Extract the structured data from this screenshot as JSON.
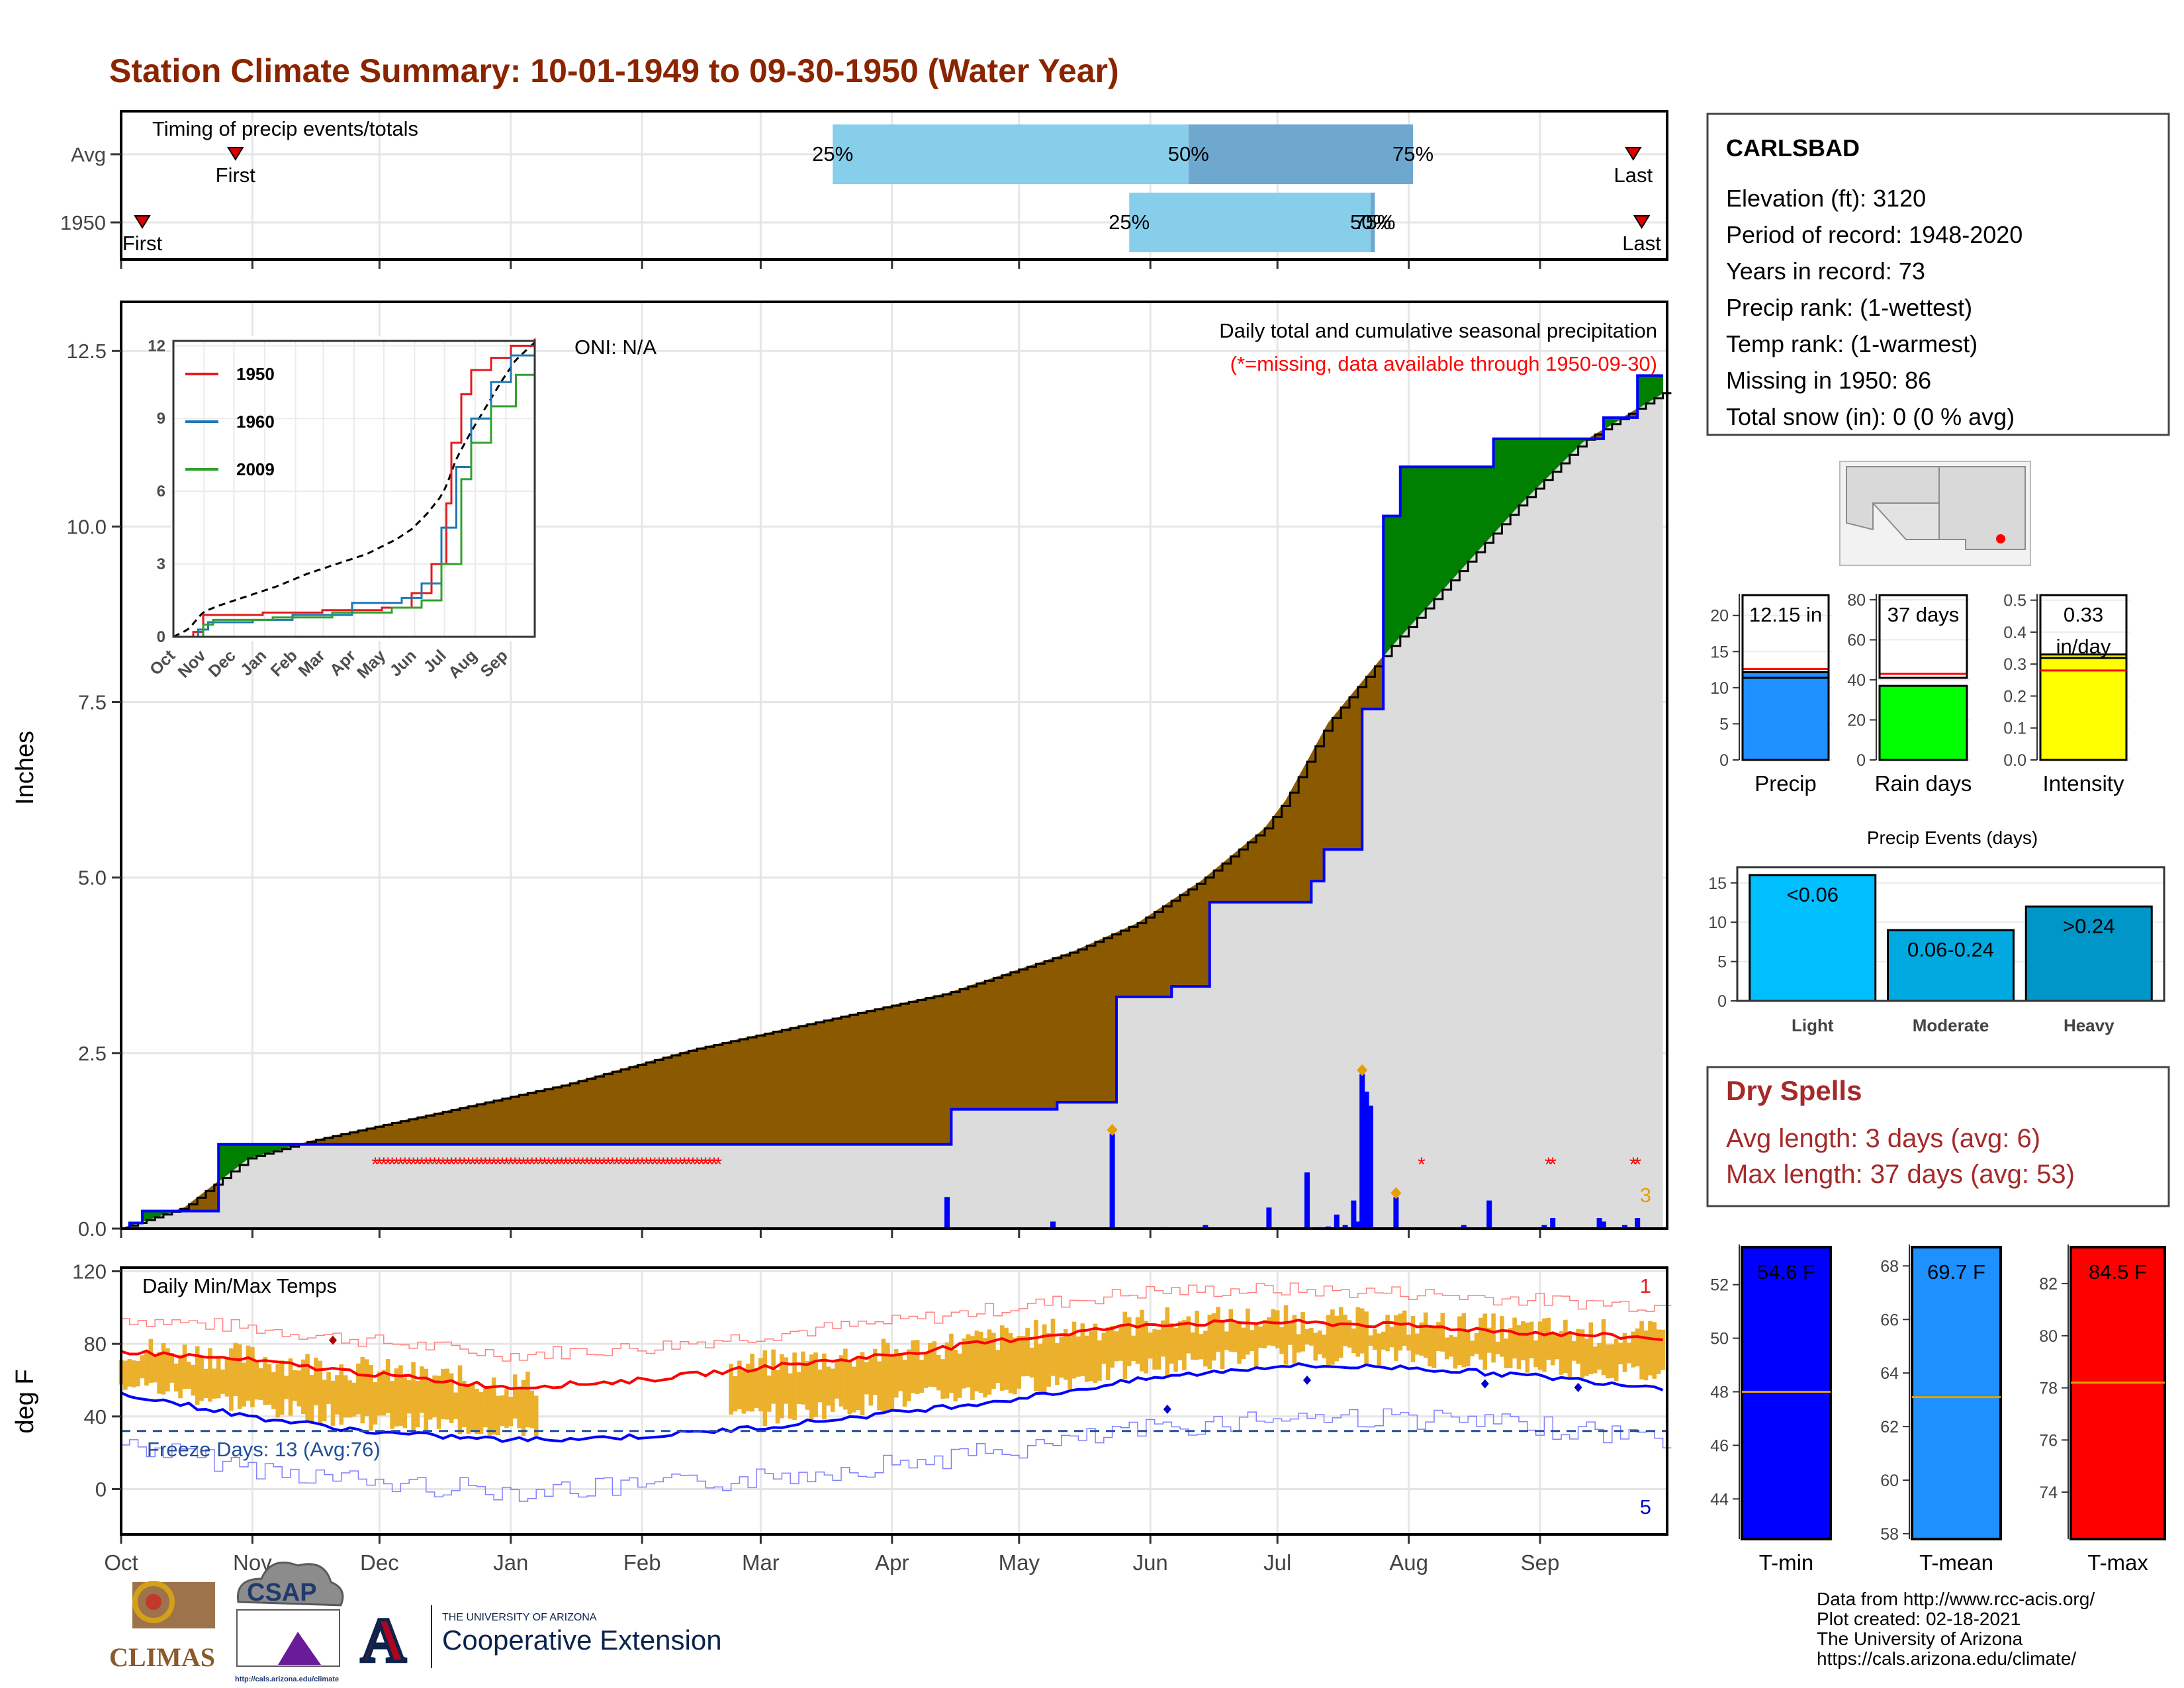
{
  "title": "Station Climate Summary: 10-01-1949 to 09-30-1950 (Water Year)",
  "colors": {
    "title": "#8B2500",
    "bar_light": "#87CEEB",
    "bar_dark": "#6FA8CF",
    "above_normal": "#008000",
    "below_normal": "#8B5A00",
    "normal_fill": "#DCDCDC",
    "cum_line": "#0000FF",
    "missing": "#FF0000",
    "temp_range": "#EBB02C",
    "tmax_avg": "#FF0000",
    "tmin_avg": "#0000FF",
    "freeze_line": "#1F4E9A",
    "precip_bar": "#1E90FF",
    "raindays_bar": "#00FF00",
    "intensity_bar": "#FFFF00",
    "events_light": "#00BFFF",
    "events_moderate": "#00A9E0",
    "events_heavy": "#0096C8",
    "tmin_bar": "#0000FF",
    "tmean_bar": "#1E90FF",
    "tmax_bar": "#FF0000",
    "avg_marker": "#E69F00",
    "dry_spell_text": "#A52A2A"
  },
  "timing": {
    "label": "Timing of precip events/totals",
    "rows": [
      {
        "label": "Avg",
        "first_marker": "First",
        "last_marker": "Last",
        "first_doy": 27,
        "last_doy": 357,
        "q25_doy": 168,
        "q50_doy": 252,
        "q75_doy": 305,
        "q25_label": "25%",
        "q50_label": "50%",
        "q75_label": "75%"
      },
      {
        "label": "1950",
        "first_marker": "First",
        "last_marker": "Last",
        "first_doy": 5,
        "last_doy": 359,
        "q25_doy": 238,
        "q50_doy": 295,
        "q75_doy": 296,
        "q25_label": "25%",
        "q50_label": "50%",
        "q75_label": "75%"
      }
    ]
  },
  "precip_panel": {
    "ylabel": "Inches",
    "subtitle": "Daily total and cumulative seasonal precipitation",
    "missing_note": "(*=missing, data available through 1950-09-30)",
    "oni": "ONI: N/A",
    "count_label": "3",
    "y_ticks": [
      "0.0",
      "2.5",
      "5.0",
      "7.5",
      "10.0",
      "12.5"
    ],
    "ylim": [
      0,
      13.2
    ]
  },
  "inset": {
    "y_ticks": [
      "0",
      "3",
      "6",
      "9",
      "12"
    ],
    "x_ticks": [
      "Oct",
      "Nov",
      "Dec",
      "Jan",
      "Feb",
      "Mar",
      "Apr",
      "May",
      "Jun",
      "Jul",
      "Aug",
      "Sep"
    ],
    "legend": [
      {
        "name": "1950",
        "color": "#E31A1C"
      },
      {
        "name": "1960",
        "color": "#1F78B4"
      },
      {
        "name": "2009",
        "color": "#33A02C"
      }
    ]
  },
  "temp_panel": {
    "ylabel": "deg F",
    "label": "Daily Min/Max Temps",
    "freeze_label": "Freeze Days: 13 (Avg:76)",
    "count_top": "1",
    "count_bottom": "5",
    "y_ticks": [
      "0",
      "40",
      "80",
      "120"
    ],
    "ylim": [
      -25,
      122
    ]
  },
  "months": [
    "Oct",
    "Nov",
    "Dec",
    "Jan",
    "Feb",
    "Mar",
    "Apr",
    "May",
    "Jun",
    "Jul",
    "Aug",
    "Sep"
  ],
  "info": {
    "station": "CARLSBAD",
    "lines": [
      "Elevation (ft): 3120",
      "Period of record: 1948-2020",
      "Years in record: 73",
      "Precip rank:  (1-wettest)",
      "Temp rank:  (1-warmest)",
      "Missing in 1950: 86",
      "Total snow (in): 0 (0 % avg)"
    ]
  },
  "mini_bars": [
    {
      "label": "Precip",
      "value_text": "12.15 in",
      "value": 12.15,
      "avg": 12.6,
      "ticks": [
        "0",
        "5",
        "10",
        "15",
        "20"
      ],
      "ymax": 23
    },
    {
      "label": "Rain days",
      "value_text": "37 days",
      "value": 37,
      "avg": 43,
      "ticks": [
        "0",
        "20",
        "40",
        "60",
        "80"
      ],
      "ymax": 83
    },
    {
      "label": "Intensity",
      "value_text": "0.33 in/day",
      "value_line1": "0.33",
      "value_line2": "in/day",
      "value": 0.33,
      "avg": 0.28,
      "ticks": [
        "0.0",
        "0.1",
        "0.2",
        "0.3",
        "0.4",
        "0.5"
      ],
      "ymax": 0.52
    }
  ],
  "events": {
    "title": "Precip Events (days)",
    "categories": [
      "Light",
      "Moderate",
      "Heavy"
    ],
    "values": [
      16,
      9,
      12
    ],
    "labels": [
      "<0.06",
      "0.06-0.24",
      ">0.24"
    ],
    "ticks": [
      "0",
      "5",
      "10",
      "15"
    ]
  },
  "dry_spells": {
    "title": "Dry Spells",
    "avg": "Avg length: 3 days (avg: 6)",
    "max": "Max length: 37 days (avg: 53)"
  },
  "temp_bars": [
    {
      "label": "T-min",
      "value_text": "54.6 F",
      "value": 54.6,
      "avg": 48.0,
      "ticks": [
        "44",
        "46",
        "48",
        "50",
        "52"
      ],
      "ylim": [
        42.5,
        53.5
      ]
    },
    {
      "label": "T-mean",
      "value_text": "69.7 F",
      "value": 69.7,
      "avg": 63.1,
      "ticks": [
        "58",
        "60",
        "62",
        "64",
        "66",
        "68"
      ],
      "ylim": [
        57.8,
        68.8
      ]
    },
    {
      "label": "T-max",
      "value_text": "84.5 F",
      "value": 84.5,
      "avg": 78.2,
      "ticks": [
        "74",
        "76",
        "78",
        "80",
        "82"
      ],
      "ylim": [
        72.2,
        83.5
      ]
    }
  ],
  "credits": [
    "Data from http://www.rcc-acis.org/",
    "Plot created: 02-18-2021",
    "The University of Arizona",
    "https://cals.arizona.edu/climate/"
  ],
  "logos": {
    "climas": "CLIMAS",
    "csap": "CSAP",
    "csap_url": "http://cals.arizona.edu/climate",
    "ua_small": "THE UNIVERSITY OF ARIZONA",
    "ua_big": "Cooperative Extension"
  },
  "chart_data": {
    "type": "area",
    "title": "Station Climate Summary: 10-01-1949 to 09-30-1950 (Water Year)",
    "ylabel": "Inches",
    "x_axis": "day of water year (Oct 1 = 0)",
    "ylim": [
      0,
      13.2
    ],
    "normal_cumulative": {
      "x": [
        0,
        15,
        30,
        45,
        60,
        75,
        90,
        105,
        120,
        135,
        150,
        165,
        180,
        195,
        210,
        225,
        240,
        255,
        270,
        275,
        285,
        300,
        315,
        330,
        345,
        364
      ],
      "y": [
        0,
        0.3,
        1.0,
        1.25,
        1.45,
        1.65,
        1.85,
        2.05,
        2.3,
        2.55,
        2.75,
        2.95,
        3.15,
        3.35,
        3.65,
        3.95,
        4.35,
        4.95,
        5.7,
        6.1,
        7.2,
        8.3,
        9.3,
        10.3,
        11.2,
        11.9
      ]
    },
    "observed_cumulative": {
      "x": [
        0,
        2,
        5,
        22,
        23,
        24,
        195,
        196,
        220,
        221,
        234,
        235,
        247,
        248,
        256,
        257,
        280,
        281,
        283,
        284,
        292,
        293,
        297,
        298,
        301,
        302,
        323,
        324,
        349,
        350,
        357,
        358,
        364
      ],
      "y": [
        0,
        0.08,
        0.25,
        0.25,
        1.2,
        1.2,
        1.2,
        1.7,
        1.7,
        1.8,
        1.8,
        3.3,
        3.3,
        3.45,
        3.45,
        4.65,
        4.65,
        4.95,
        4.95,
        5.4,
        5.4,
        7.4,
        7.4,
        10.15,
        10.15,
        10.85,
        10.85,
        11.25,
        11.25,
        11.55,
        11.55,
        12.15,
        12.15
      ]
    },
    "daily_precip": {
      "x": [
        195,
        220,
        234,
        246,
        256,
        271,
        280,
        283,
        285,
        287,
        289,
        291,
        292,
        293,
        294,
        295,
        301,
        317,
        323,
        336,
        338,
        349,
        350,
        355,
        358
      ],
      "y": [
        0.45,
        0.1,
        1.35,
        0.02,
        0.05,
        0.3,
        0.8,
        0.02,
        0.03,
        0.2,
        0.05,
        0.4,
        0.1,
        2.2,
        1.95,
        1.75,
        0.45,
        0.05,
        0.4,
        0.05,
        0.15,
        0.15,
        0.1,
        0.05,
        0.15
      ]
    },
    "missing_days": {
      "x_start": 60,
      "x_end": 141,
      "extra": [
        307,
        337,
        338,
        357,
        358
      ]
    },
    "tmax_avg": {
      "x": [
        0,
        30,
        61,
        92,
        123,
        151,
        182,
        212,
        243,
        273,
        304,
        335,
        364
      ],
      "y": [
        76,
        71,
        63,
        56,
        60,
        67,
        74,
        83,
        91,
        92,
        90,
        86,
        83
      ]
    },
    "tmin_avg": {
      "x": [
        0,
        30,
        61,
        92,
        123,
        151,
        182,
        212,
        243,
        273,
        304,
        335,
        364
      ],
      "y": [
        53,
        40,
        31,
        27,
        29,
        34,
        42,
        50,
        61,
        68,
        67,
        62,
        56
      ]
    },
    "freeze_threshold": 32
  }
}
